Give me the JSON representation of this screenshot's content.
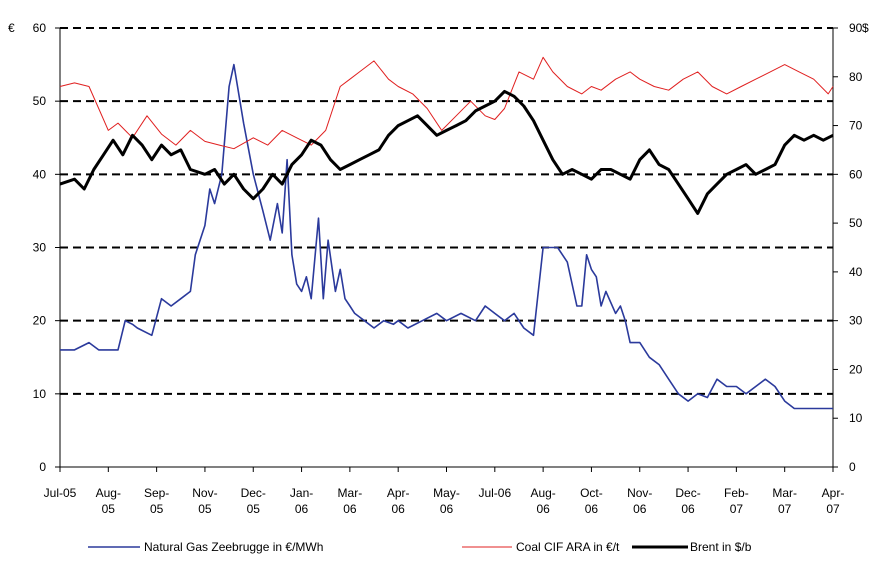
{
  "chart_data": {
    "type": "line",
    "title": "",
    "axes": {
      "left": {
        "unit_label": "€",
        "ylim": [
          0,
          60
        ],
        "ticks": [
          0,
          10,
          20,
          30,
          40,
          50,
          60
        ]
      },
      "right": {
        "unit_label": "$",
        "ylim": [
          0,
          90
        ],
        "ticks": [
          0,
          10,
          20,
          30,
          40,
          50,
          60,
          70,
          80,
          90
        ]
      }
    },
    "x_ticks": [
      [
        "Jul-05",
        ""
      ],
      [
        "Aug-",
        "05"
      ],
      [
        "Sep-",
        "05"
      ],
      [
        "Nov-",
        "05"
      ],
      [
        "Dec-",
        "05"
      ],
      [
        "Jan-",
        "06"
      ],
      [
        "Mar-",
        "06"
      ],
      [
        "Apr-",
        "06"
      ],
      [
        "May-",
        "06"
      ],
      [
        "Jul-06",
        ""
      ],
      [
        "Aug-",
        "06"
      ],
      [
        "Oct-",
        "06"
      ],
      [
        "Nov-",
        "06"
      ],
      [
        "Dec-",
        "06"
      ],
      [
        "Feb-",
        "07"
      ],
      [
        "Mar-",
        "07"
      ],
      [
        "Apr-",
        "07"
      ]
    ],
    "grid": {
      "horizontal": "dashed",
      "values_left_axis": [
        10,
        20,
        30,
        40,
        50,
        60
      ]
    },
    "legend": {
      "placement": "bottom"
    },
    "series": [
      {
        "name": "Natural Gas Zeebrugge in €/MWh",
        "axis": "left",
        "color": "#2b3a9c",
        "x": [
          0,
          0.3,
          0.6,
          0.8,
          1.0,
          1.2,
          1.35,
          1.5,
          1.6,
          1.9,
          2.1,
          2.3,
          2.5,
          2.7,
          2.8,
          3.0,
          3.1,
          3.2,
          3.35,
          3.5,
          3.6,
          3.8,
          4.0,
          4.2,
          4.35,
          4.5,
          4.6,
          4.7,
          4.8,
          4.9,
          5.0,
          5.1,
          5.2,
          5.35,
          5.45,
          5.55,
          5.7,
          5.8,
          5.9,
          6.0,
          6.1,
          6.2,
          6.3,
          6.5,
          6.7,
          6.9,
          7.0,
          7.2,
          7.5,
          7.8,
          8.0,
          8.3,
          8.6,
          8.8,
          9.0,
          9.2,
          9.4,
          9.6,
          9.8,
          10.0,
          10.3,
          10.5,
          10.7,
          10.8,
          10.9,
          11.0,
          11.1,
          11.2,
          11.3,
          11.5,
          11.6,
          11.7,
          11.8,
          12.0,
          12.2,
          12.4,
          12.6,
          12.8,
          13.0,
          13.2,
          13.4,
          13.6,
          13.8,
          14.0,
          14.2,
          14.4,
          14.6,
          14.8,
          15.0,
          15.2,
          15.4,
          15.6,
          15.8,
          16.0
        ],
        "y": [
          16,
          16,
          17,
          16,
          16,
          16,
          20,
          19.5,
          19,
          18,
          23,
          22,
          23,
          24,
          29,
          33,
          38,
          36,
          40,
          52,
          55,
          47,
          40,
          35,
          31,
          36,
          32,
          42,
          29,
          25,
          24,
          26,
          23,
          34,
          23,
          31,
          24,
          27,
          23,
          22,
          21,
          20.5,
          20,
          19,
          20,
          19.5,
          20,
          19,
          20,
          21,
          20,
          21,
          20,
          22,
          21,
          20,
          21,
          19,
          18,
          30,
          30,
          28,
          22,
          22,
          29,
          27,
          26,
          22,
          24,
          21,
          22,
          20,
          17,
          17,
          15,
          14,
          12,
          10,
          9,
          10,
          9.5,
          12,
          11,
          11,
          10,
          11,
          12,
          11,
          9,
          8,
          8,
          8,
          8,
          8
        ]
      },
      {
        "name": "Coal CIF ARA in €/t",
        "axis": "left",
        "color": "#e02020",
        "x": [
          0,
          0.3,
          0.6,
          0.8,
          1.0,
          1.2,
          1.5,
          1.8,
          2.1,
          2.4,
          2.7,
          3.0,
          3.3,
          3.6,
          4.0,
          4.3,
          4.6,
          4.9,
          5.2,
          5.5,
          5.8,
          6.0,
          6.2,
          6.5,
          6.8,
          7.0,
          7.3,
          7.6,
          7.9,
          8.2,
          8.5,
          8.8,
          9.0,
          9.2,
          9.5,
          9.8,
          10.0,
          10.2,
          10.5,
          10.8,
          11.0,
          11.2,
          11.5,
          11.8,
          12.0,
          12.3,
          12.6,
          12.9,
          13.2,
          13.5,
          13.8,
          14.1,
          14.4,
          14.7,
          15.0,
          15.3,
          15.6,
          15.9,
          16.0
        ],
        "y": [
          52,
          52.5,
          52,
          49,
          46,
          47,
          45,
          48,
          45.5,
          44,
          46,
          44.5,
          44,
          43.5,
          45,
          44,
          46,
          45,
          44,
          46,
          52,
          53,
          54,
          55.5,
          53,
          52,
          51,
          49,
          46,
          48,
          50,
          48,
          47.5,
          49,
          54,
          53,
          56,
          54,
          52,
          51,
          52,
          51.5,
          53,
          54,
          53,
          52,
          51.5,
          53,
          54,
          52,
          51,
          52,
          53,
          54,
          55,
          54,
          53,
          51,
          52
        ]
      },
      {
        "name": "Brent in $/b",
        "axis": "right",
        "color": "#000000",
        "x": [
          0,
          0.3,
          0.5,
          0.7,
          0.9,
          1.1,
          1.3,
          1.5,
          1.7,
          1.9,
          2.1,
          2.3,
          2.5,
          2.7,
          3.0,
          3.2,
          3.4,
          3.6,
          3.8,
          4.0,
          4.2,
          4.4,
          4.6,
          4.8,
          5.0,
          5.2,
          5.4,
          5.6,
          5.8,
          6.0,
          6.2,
          6.4,
          6.6,
          6.8,
          7.0,
          7.2,
          7.4,
          7.6,
          7.8,
          8.0,
          8.2,
          8.4,
          8.6,
          8.8,
          9.0,
          9.2,
          9.4,
          9.6,
          9.8,
          10.0,
          10.2,
          10.4,
          10.6,
          10.8,
          11.0,
          11.2,
          11.4,
          11.6,
          11.8,
          12.0,
          12.2,
          12.4,
          12.6,
          12.8,
          13.0,
          13.2,
          13.4,
          13.6,
          13.8,
          14.0,
          14.2,
          14.4,
          14.6,
          14.8,
          15.0,
          15.2,
          15.4,
          15.6,
          15.8,
          16.0
        ],
        "y": [
          58,
          59,
          57,
          61,
          64,
          67,
          64,
          68,
          66,
          63,
          66,
          64,
          65,
          61,
          60,
          61,
          58,
          60,
          57,
          55,
          57,
          60,
          58,
          62,
          64,
          67,
          66,
          63,
          61,
          62,
          63,
          64,
          65,
          68,
          70,
          71,
          72,
          70,
          68,
          69,
          70,
          71,
          73,
          74,
          75,
          77,
          76,
          74,
          71,
          67,
          63,
          60,
          61,
          60,
          59,
          61,
          61,
          60,
          59,
          63,
          65,
          62,
          61,
          58,
          55,
          52,
          56,
          58,
          60,
          61,
          62,
          60,
          61,
          62,
          66,
          68,
          67,
          68,
          67,
          68
        ]
      }
    ]
  }
}
